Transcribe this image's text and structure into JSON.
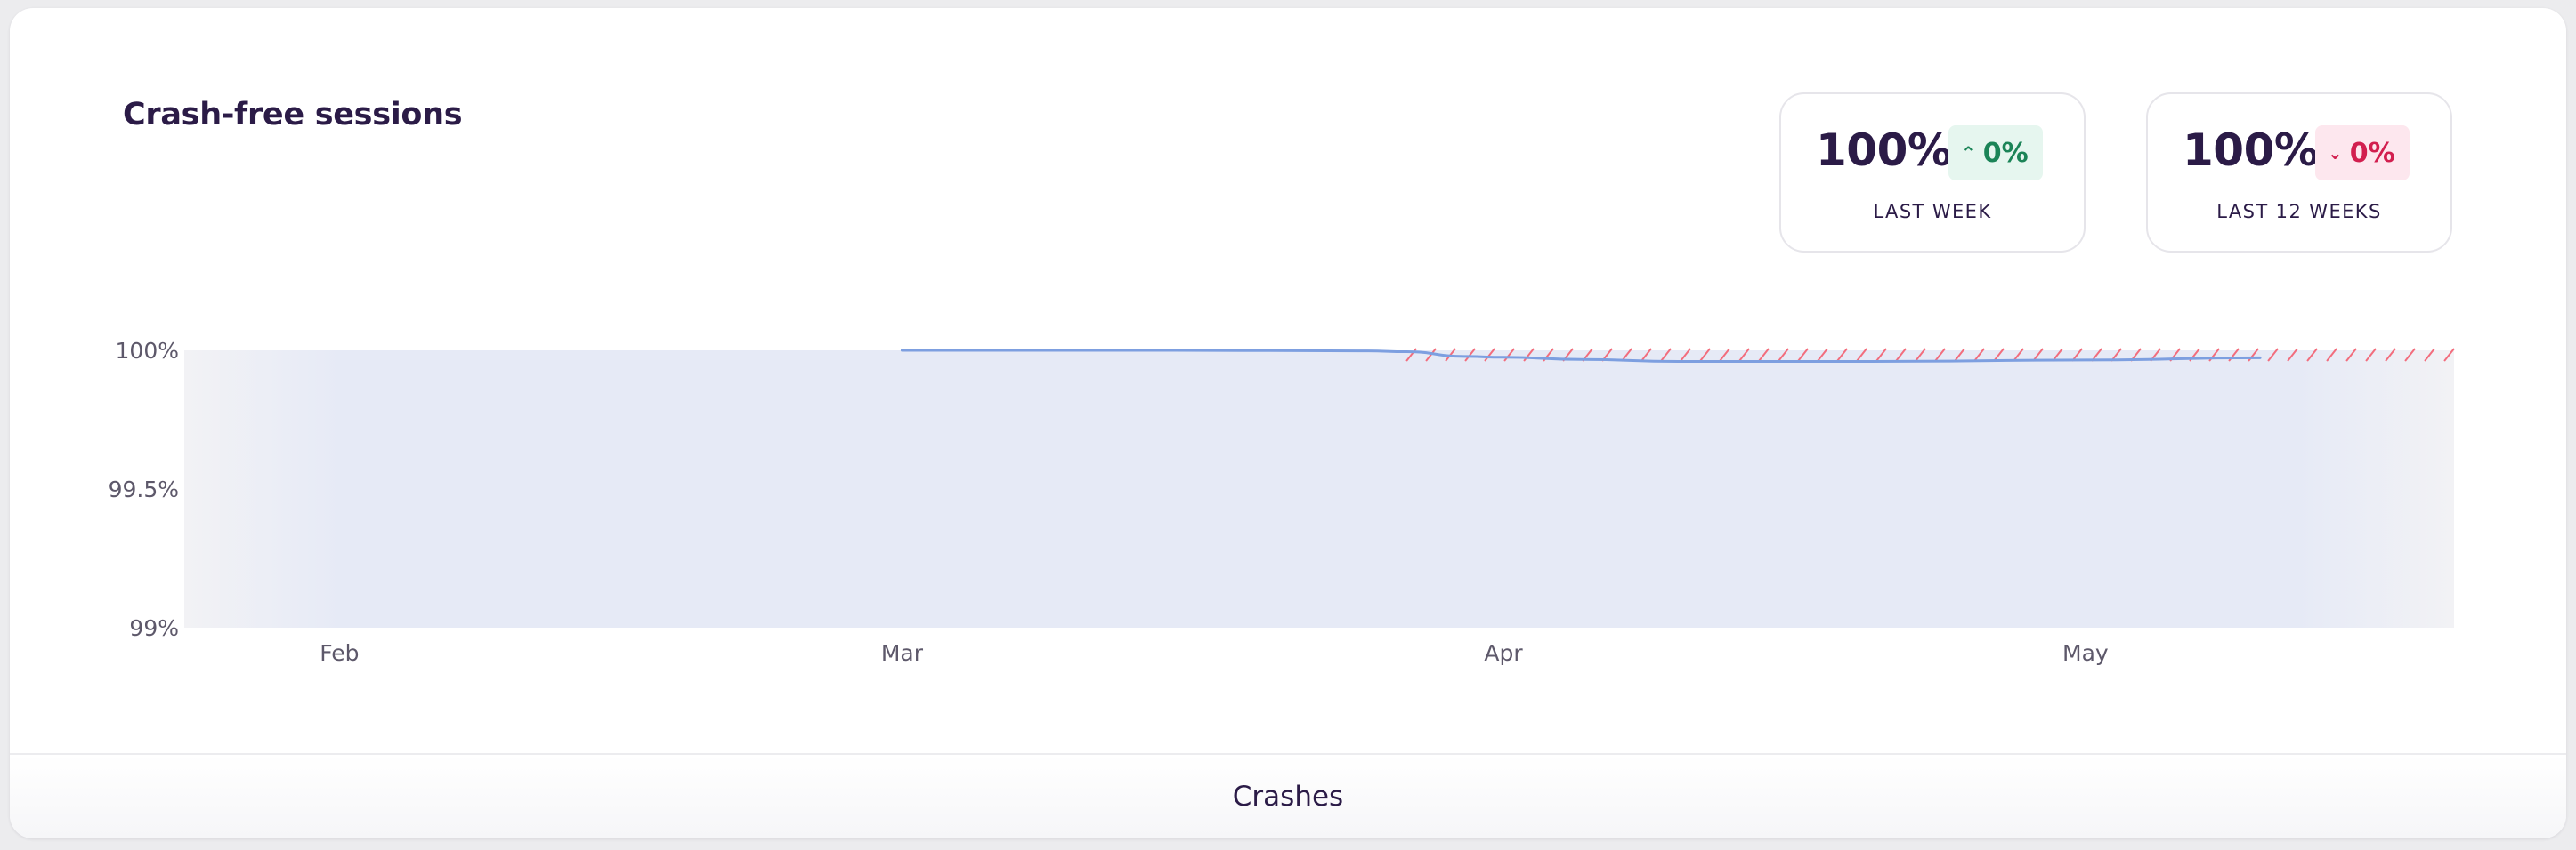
{
  "panel": {
    "title": "Crash-free sessions",
    "footer_tab": "Crashes"
  },
  "stats": [
    {
      "value": "100%",
      "delta": "0%",
      "trend": "up",
      "icon": "chevron-up-icon",
      "label": "LAST WEEK"
    },
    {
      "value": "100%",
      "delta": "0%",
      "trend": "down",
      "icon": "chevron-down-icon",
      "label": "LAST 12 WEEKS"
    }
  ],
  "colors": {
    "line": "#7d9fe0",
    "area": "#e6eaf6",
    "hatch": "#f26d7d",
    "title": "#2b1b47",
    "positive": "#1b8457",
    "negative": "#d21f4f"
  },
  "chart_data": {
    "type": "area",
    "y_ticks": [
      "100%",
      "99.5%",
      "99%"
    ],
    "y_tick_values": [
      100,
      99.5,
      99
    ],
    "ylim": [
      99,
      100
    ],
    "x_ticks": [
      {
        "label": "Feb",
        "date": "2024-02-01"
      },
      {
        "label": "Mar",
        "date": "2024-03-01"
      },
      {
        "label": "Apr",
        "date": "2024-04-01"
      },
      {
        "label": "May",
        "date": "2024-05-01"
      }
    ],
    "x_range": [
      "2024-01-24",
      "2024-05-20"
    ],
    "series": [
      {
        "points": [
          {
            "x": "2024-03-01",
            "y": 100.0
          },
          {
            "x": "2024-03-15",
            "y": 100.0
          },
          {
            "x": "2024-03-25",
            "y": 99.998
          },
          {
            "x": "2024-03-27",
            "y": 99.995
          },
          {
            "x": "2024-03-30",
            "y": 99.978
          },
          {
            "x": "2024-04-01",
            "y": 99.975
          },
          {
            "x": "2024-04-05",
            "y": 99.967
          },
          {
            "x": "2024-04-10",
            "y": 99.96
          },
          {
            "x": "2024-04-20",
            "y": 99.96
          },
          {
            "x": "2024-05-01",
            "y": 99.965
          },
          {
            "x": "2024-05-10",
            "y": 99.973
          }
        ]
      }
    ],
    "hatched_range": [
      "2024-03-27",
      "2024-05-20"
    ],
    "grid": false
  }
}
